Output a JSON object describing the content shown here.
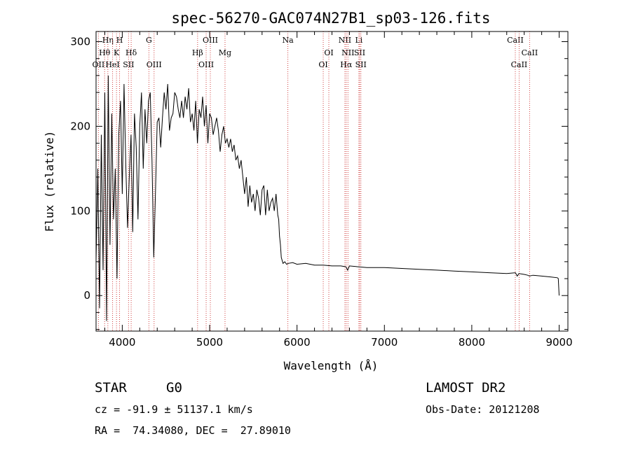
{
  "header": {
    "title": "spec-56270-GAC074N27B1_sp03-126.fits"
  },
  "info": {
    "class": "STAR",
    "subclass": "G0",
    "cz": "cz = -91.9 ± 51137.1 km/s",
    "radec": "RA =  74.34080, DEC =  27.89010",
    "survey": "LAMOST DR2",
    "obsdate": "Obs-Date: 20121208"
  },
  "chart_data": {
    "type": "line",
    "xlabel": "Wavelength (Å)",
    "ylabel": "Flux (relative)",
    "xlim": [
      3700,
      9100
    ],
    "ylim": [
      -42,
      312
    ],
    "xticks": [
      4000,
      5000,
      6000,
      7000,
      8000,
      9000
    ],
    "yticks": [
      0,
      100,
      200,
      300
    ],
    "grid": false,
    "series": [
      {
        "x": [
          3700,
          3720,
          3740,
          3760,
          3780,
          3800,
          3820,
          3840,
          3860,
          3880,
          3900,
          3920,
          3940,
          3960,
          3980,
          4000,
          4020,
          4040,
          4060,
          4080,
          4100,
          4120,
          4140,
          4160,
          4180,
          4200,
          4220,
          4240,
          4260,
          4280,
          4300,
          4320,
          4340,
          4360,
          4380,
          4400,
          4420,
          4440,
          4460,
          4480,
          4500,
          4520,
          4540,
          4560,
          4580,
          4600,
          4620,
          4640,
          4660,
          4680,
          4700,
          4720,
          4740,
          4760,
          4780,
          4800,
          4820,
          4840,
          4860,
          4880,
          4900,
          4920,
          4940,
          4960,
          4980,
          5000,
          5020,
          5040,
          5060,
          5080,
          5100,
          5120,
          5140,
          5160,
          5180,
          5200,
          5220,
          5240,
          5260,
          5280,
          5300,
          5320,
          5340,
          5360,
          5380,
          5400,
          5420,
          5440,
          5460,
          5480,
          5500,
          5520,
          5540,
          5560,
          5580,
          5600,
          5620,
          5640,
          5660,
          5680,
          5700,
          5720,
          5740,
          5760,
          5780,
          5790,
          5800,
          5810,
          5820,
          5840,
          5860,
          5880,
          5900,
          5950,
          6000,
          6100,
          6200,
          6300,
          6400,
          6500,
          6560,
          6580,
          6600,
          6700,
          6800,
          6900,
          7000,
          7200,
          7400,
          7600,
          7800,
          8000,
          8200,
          8400,
          8500,
          8520,
          8540,
          8600,
          8640,
          8660,
          8700,
          8800,
          8900,
          8980,
          8990,
          9000
        ],
        "y": [
          40,
          150,
          -15,
          190,
          30,
          240,
          -30,
          260,
          60,
          215,
          90,
          150,
          20,
          190,
          230,
          120,
          250,
          155,
          80,
          140,
          190,
          75,
          215,
          175,
          90,
          200,
          240,
          150,
          220,
          180,
          230,
          240,
          160,
          45,
          120,
          205,
          210,
          175,
          210,
          240,
          220,
          250,
          195,
          210,
          215,
          240,
          235,
          220,
          210,
          230,
          210,
          235,
          220,
          245,
          205,
          215,
          195,
          230,
          180,
          220,
          210,
          235,
          200,
          225,
          180,
          215,
          210,
          190,
          200,
          210,
          195,
          170,
          190,
          200,
          180,
          185,
          175,
          185,
          170,
          178,
          160,
          165,
          150,
          160,
          140,
          120,
          140,
          105,
          130,
          110,
          120,
          100,
          125,
          115,
          95,
          125,
          130,
          95,
          125,
          100,
          110,
          115,
          100,
          120,
          95,
          90,
          70,
          60,
          45,
          38,
          40,
          37,
          38,
          39,
          37,
          38,
          36,
          36,
          35,
          35,
          34,
          30,
          35,
          34,
          33,
          33,
          33,
          32,
          31,
          30,
          29,
          28,
          27,
          26,
          27,
          23,
          26,
          25,
          24,
          23,
          24,
          23,
          22,
          21,
          20,
          0
        ]
      }
    ],
    "lines": [
      {
        "name": "OII",
        "x": 3727,
        "row": 2
      },
      {
        "name": "Hθ",
        "x": 3798,
        "row": 1
      },
      {
        "name": "Hη",
        "x": 3835,
        "row": 0
      },
      {
        "name": "HeI",
        "x": 3889,
        "row": 2
      },
      {
        "name": "K",
        "x": 3934,
        "row": 1
      },
      {
        "name": "H",
        "x": 3969,
        "row": 0
      },
      {
        "name": "SII",
        "x": 4072,
        "row": 2
      },
      {
        "name": "Hδ",
        "x": 4102,
        "row": 1
      },
      {
        "name": "G",
        "x": 4305,
        "row": 0
      },
      {
        "name": "OIII",
        "x": 4364,
        "row": 2
      },
      {
        "name": "Hβ",
        "x": 4862,
        "row": 1
      },
      {
        "name": "OIII",
        "x": 4960,
        "row": 2
      },
      {
        "name": "OIII",
        "x": 5008,
        "row": 0
      },
      {
        "name": "Mg",
        "x": 5176,
        "row": 1
      },
      {
        "name": "Na",
        "x": 5895,
        "row": 0
      },
      {
        "name": "OI",
        "x": 6300,
        "row": 2
      },
      {
        "name": "OI",
        "x": 6364,
        "row": 1
      },
      {
        "name": "NII",
        "x": 6548,
        "row": 0
      },
      {
        "name": "Hα",
        "x": 6563,
        "row": 2
      },
      {
        "name": "NII",
        "x": 6583,
        "row": 1
      },
      {
        "name": "Li",
        "x": 6708,
        "row": 0
      },
      {
        "name": "SII",
        "x": 6717,
        "row": 1
      },
      {
        "name": "SII",
        "x": 6731,
        "row": 2
      },
      {
        "name": "CaII",
        "x": 8498,
        "row": 0
      },
      {
        "name": "CaII",
        "x": 8542,
        "row": 2
      },
      {
        "name": "CaII",
        "x": 8662,
        "row": 1
      }
    ]
  }
}
